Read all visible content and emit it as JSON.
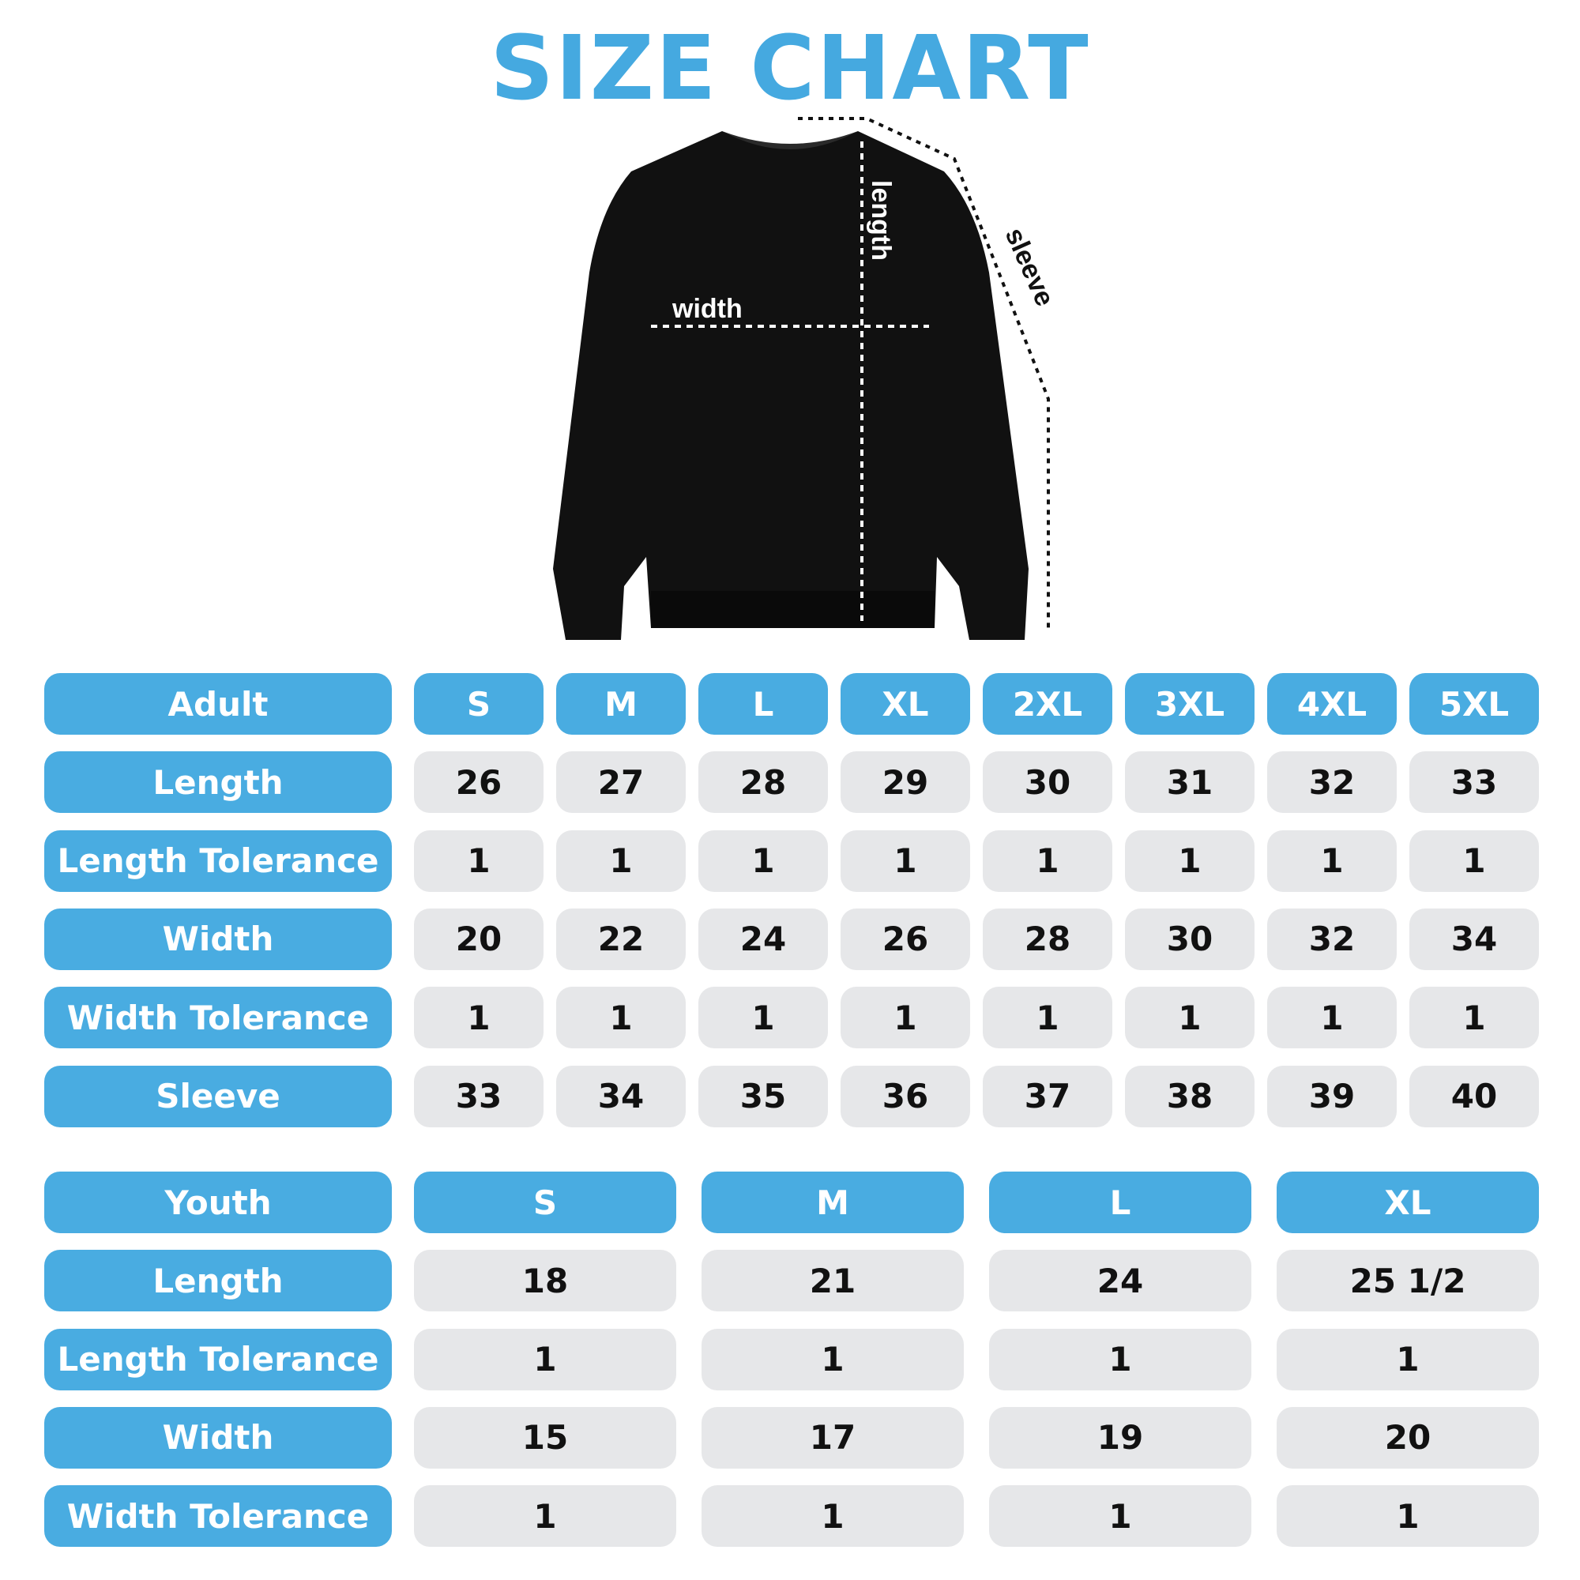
{
  "title": "SIZE CHART",
  "diagram_labels": {
    "width": "width",
    "length": "length",
    "sleeve": "sleeve"
  },
  "colors": {
    "accent": "#49ace1",
    "cell_bg": "#e6e7e9",
    "garment": "#111111"
  },
  "adult": {
    "header": "Adult",
    "sizes": [
      "S",
      "M",
      "L",
      "XL",
      "2XL",
      "3XL",
      "4XL",
      "5XL"
    ],
    "rows": [
      {
        "label": "Length",
        "values": [
          "26",
          "27",
          "28",
          "29",
          "30",
          "31",
          "32",
          "33"
        ]
      },
      {
        "label": "Length Tolerance",
        "values": [
          "1",
          "1",
          "1",
          "1",
          "1",
          "1",
          "1",
          "1"
        ]
      },
      {
        "label": "Width",
        "values": [
          "20",
          "22",
          "24",
          "26",
          "28",
          "30",
          "32",
          "34"
        ]
      },
      {
        "label": "Width Tolerance",
        "values": [
          "1",
          "1",
          "1",
          "1",
          "1",
          "1",
          "1",
          "1"
        ]
      },
      {
        "label": "Sleeve",
        "values": [
          "33",
          "34",
          "35",
          "36",
          "37",
          "38",
          "39",
          "40"
        ]
      }
    ]
  },
  "youth": {
    "header": "Youth",
    "sizes": [
      "S",
      "M",
      "L",
      "XL"
    ],
    "rows": [
      {
        "label": "Length",
        "values": [
          "18",
          "21",
          "24",
          "25 1/2"
        ]
      },
      {
        "label": "Length Tolerance",
        "values": [
          "1",
          "1",
          "1",
          "1"
        ]
      },
      {
        "label": "Width",
        "values": [
          "15",
          "17",
          "19",
          "20"
        ]
      },
      {
        "label": "Width Tolerance",
        "values": [
          "1",
          "1",
          "1",
          "1"
        ]
      }
    ]
  }
}
